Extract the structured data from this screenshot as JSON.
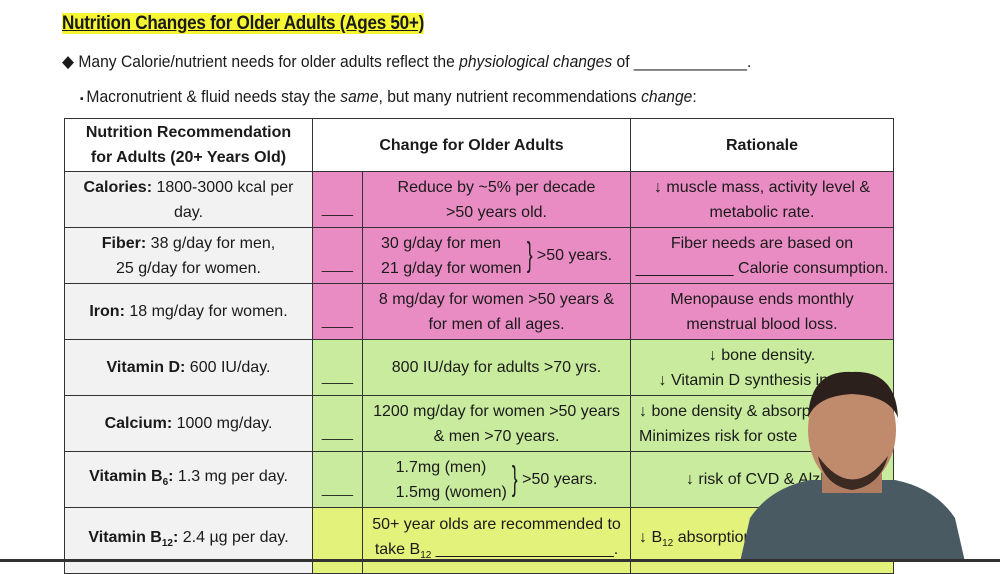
{
  "title": "Nutrition Changes for Older Adults (Ages 50+)",
  "bullet1": {
    "icon": "diamond-bullet",
    "text_before": "Many Calorie/nutrient needs for older adults reflect the ",
    "italic": "physiological changes",
    "text_after": " of _____________."
  },
  "bullet2": {
    "icon": "small-bullet",
    "text_before": "Macronutrient & fluid needs stay the ",
    "italic1": "same",
    "text_mid": ", but many nutrient recommendations ",
    "italic2": "change",
    "text_after": ":"
  },
  "table": {
    "headers": [
      "Nutrition Recommendation for Adults (20+ Years Old)",
      "Change for Older Adults",
      "Rationale"
    ],
    "header_line1": "Nutrition Recommendation",
    "header_line2": "for Adults (20+ Years Old)",
    "blank": "____",
    "rows": [
      {
        "nutrient": "Calories:",
        "amount": " 1800-3000 kcal per day.",
        "change1": "Reduce by ~5% per decade",
        "change2": ">50 years old.",
        "rationale1": "↓ muscle mass, activity level &",
        "rationale2": "metabolic rate.",
        "color": "#ea8cc4"
      },
      {
        "nutrient": "Fiber:",
        "amount": " 38 g/day for men,",
        "amount2": "25 g/day for women.",
        "change1": "30 g/day for men",
        "change2": "21 g/day for women",
        "change_suffix": ">50 years.",
        "rationale1": "Fiber needs are based on",
        "rationale2": "___________ Calorie consumption.",
        "color": "#ea8cc4"
      },
      {
        "nutrient": "Iron:",
        "amount": " 18 mg/day for women.",
        "change1": "8 mg/day for women >50 years &",
        "change2": "for men of all ages.",
        "rationale1": "Menopause ends monthly",
        "rationale2": "menstrual blood loss.",
        "color": "#ea8cc4"
      },
      {
        "nutrient": "Vitamin D:",
        "amount": " 600 IU/day.",
        "change1": "800 IU/day for adults >70 yrs.",
        "rationale1": "↓ bone density.",
        "rationale2": "↓ Vitamin D synthesis in skin.",
        "color": "#c9eb9d"
      },
      {
        "nutrient": "Calcium:",
        "amount": " 1000 mg/day.",
        "change1": "1200 mg/day for women >50 years",
        "change2": "& men >70 years.",
        "rationale1": "↓ bone density & absorpt",
        "rationale2": "Minimizes risk for oste",
        "color": "#c9eb9d"
      },
      {
        "nutrient": "Vitamin B",
        "sub": "6",
        "colon": ":",
        "amount": " 1.3 mg per day.",
        "change1": "1.7mg (men)",
        "change2": "1.5mg (women)",
        "change_suffix": ">50 years.",
        "rationale1": "↓ risk of CVD & Alzhe",
        "color": "#c9eb9d"
      },
      {
        "nutrient": "Vitamin B",
        "sub": "12",
        "colon": ":",
        "amount": " 2.4 µg per day.",
        "change1": "50+ year olds are recommended to",
        "change2a": "take B",
        "change2sub": "12",
        "change2b": " ____________________.",
        "rationale_a": "↓ B",
        "rationale_sub": "12",
        "rationale_b": " absorption fr",
        "color": "#e3f27a"
      }
    ]
  }
}
